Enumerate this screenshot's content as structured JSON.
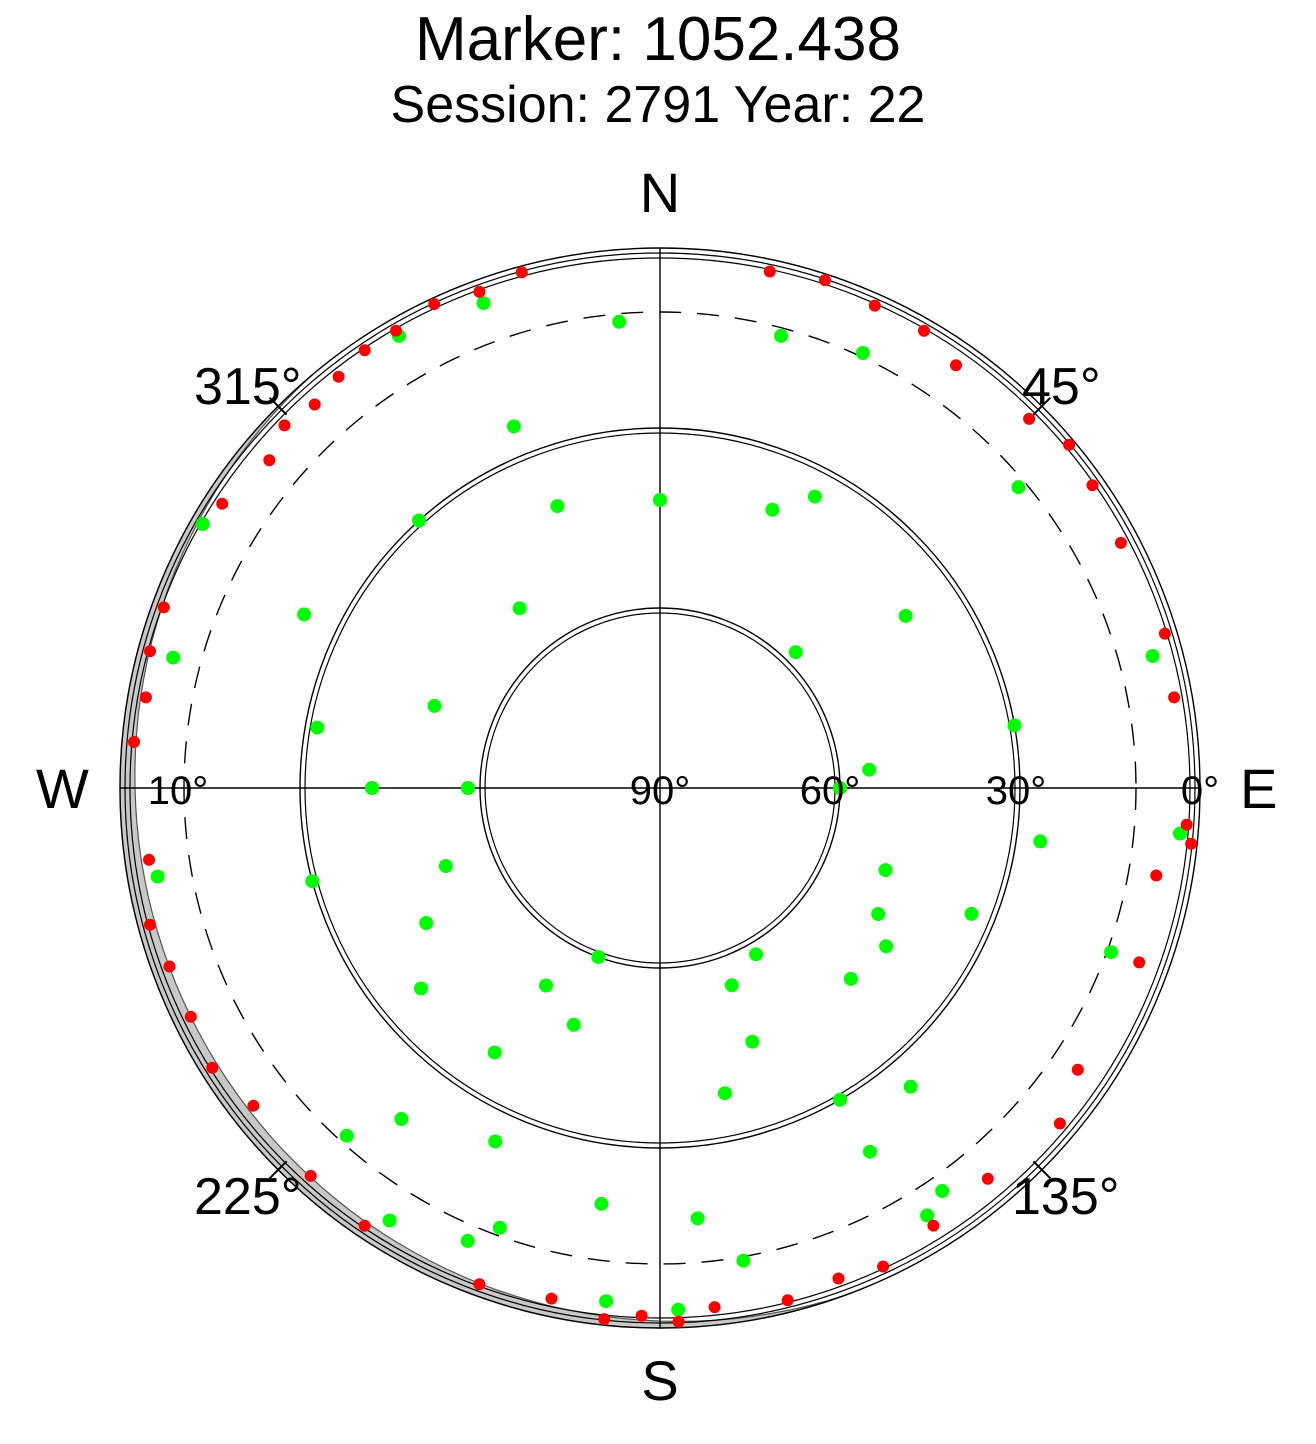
{
  "chart_data": {
    "type": "scatter",
    "subtype": "polar-skyplot",
    "title": "Marker: 1052.438",
    "subtitle": "Session: 2791 Year: 22",
    "directions": {
      "north": "N",
      "south": "S",
      "east": "E",
      "west": "W"
    },
    "azimuth_labels": [
      {
        "azimuth_deg": 45,
        "text": "45°"
      },
      {
        "azimuth_deg": 135,
        "text": "135°"
      },
      {
        "azimuth_deg": 225,
        "text": "225°"
      },
      {
        "azimuth_deg": 315,
        "text": "315°"
      }
    ],
    "elevation_labels": [
      {
        "elevation_deg": 90,
        "text": "90°"
      },
      {
        "elevation_deg": 60,
        "text": "60°"
      },
      {
        "elevation_deg": 30,
        "text": "30°"
      },
      {
        "elevation_deg": 0,
        "text": "0°"
      },
      {
        "elevation_deg": 10,
        "text": "10°",
        "side": "west"
      }
    ],
    "elevation_circles_deg": [
      0,
      30,
      60
    ],
    "cutoff_elevation_deg": 10,
    "horizon_mask": {
      "azimuth_range_deg": [
        160,
        320
      ],
      "max_elevation_deg": 3,
      "color": "#c8c8c8"
    },
    "colors": {
      "tracked": "#00ff00",
      "low_elevation": "#ff0000",
      "grid": "#000000",
      "mask": "#c8c8c8"
    },
    "series": [
      {
        "name": "",
        "color": "#00ff00",
        "points": [
          {
            "az": 340,
            "el": 4
          },
          {
            "az": 338,
            "el": 25
          },
          {
            "az": 322,
            "el": 52
          },
          {
            "az": 270,
            "el": 58
          },
          {
            "az": 212,
            "el": 38
          },
          {
            "az": 200,
            "el": 12
          },
          {
            "az": 330,
            "el": 3
          },
          {
            "az": 318,
            "el": 30
          },
          {
            "az": 290,
            "el": 50
          },
          {
            "az": 240,
            "el": 45
          },
          {
            "az": 218,
            "el": 20
          },
          {
            "az": 212,
            "el": 5
          },
          {
            "az": 25,
            "el": 10
          },
          {
            "az": 28,
            "el": 35
          },
          {
            "az": 45,
            "el": 58
          },
          {
            "az": 90,
            "el": 60
          },
          {
            "az": 135,
            "el": 45
          },
          {
            "az": 150,
            "el": 20
          },
          {
            "az": 50,
            "el": 12
          },
          {
            "az": 55,
            "el": 40
          },
          {
            "az": 85,
            "el": 55
          },
          {
            "az": 120,
            "el": 48
          },
          {
            "az": 140,
            "el": 25
          },
          {
            "az": 145,
            "el": 8
          },
          {
            "az": 75,
            "el": 5
          },
          {
            "az": 80,
            "el": 30
          },
          {
            "az": 110,
            "el": 50
          },
          {
            "az": 160,
            "el": 45
          },
          {
            "az": 175,
            "el": 18
          },
          {
            "az": 178,
            "el": 3
          },
          {
            "az": 285,
            "el": 6
          },
          {
            "az": 280,
            "el": 32
          },
          {
            "az": 250,
            "el": 52
          },
          {
            "az": 200,
            "el": 48
          },
          {
            "az": 188,
            "el": 20
          },
          {
            "az": 186,
            "el": 4
          },
          {
            "az": 300,
            "el": 2
          },
          {
            "az": 296,
            "el": 24
          },
          {
            "az": 270,
            "el": 42
          },
          {
            "az": 230,
            "el": 38
          },
          {
            "az": 222,
            "el": 12
          },
          {
            "az": 95,
            "el": 3
          },
          {
            "az": 98,
            "el": 26
          },
          {
            "az": 125,
            "el": 44
          },
          {
            "az": 168,
            "el": 38
          },
          {
            "az": 170,
            "el": 10
          },
          {
            "az": 260,
            "el": 5
          },
          {
            "az": 255,
            "el": 30
          },
          {
            "az": 200,
            "el": 60
          },
          {
            "az": 160,
            "el": 55
          },
          {
            "az": 150,
            "el": 30
          },
          {
            "az": 148,
            "el": 6
          },
          {
            "az": 110,
            "el": 10
          },
          {
            "az": 112,
            "el": 34
          },
          {
            "az": 150,
            "el": 58
          },
          {
            "az": 210,
            "el": 52
          },
          {
            "az": 205,
            "el": 25
          },
          {
            "az": 203,
            "el": 8
          },
          {
            "az": 355,
            "el": 12
          },
          {
            "az": 340,
            "el": 40
          },
          {
            "az": 0,
            "el": 42
          },
          {
            "az": 22,
            "el": 40
          },
          {
            "az": 15,
            "el": 12
          }
        ]
      },
      {
        "name": "",
        "color": "#ff0000",
        "points": [
          {
            "az": 322,
            "el": 3
          },
          {
            "az": 326,
            "el": 2
          },
          {
            "az": 330,
            "el": 2
          },
          {
            "az": 335,
            "el": 1
          },
          {
            "az": 340,
            "el": 2
          },
          {
            "az": 345,
            "el": 1
          },
          {
            "az": 318,
            "el": 4
          },
          {
            "az": 314,
            "el": 3
          },
          {
            "az": 310,
            "el": 5
          },
          {
            "az": 303,
            "el": 3
          },
          {
            "az": 290,
            "el": 2
          },
          {
            "az": 285,
            "el": 2
          },
          {
            "az": 280,
            "el": 3
          },
          {
            "az": 275,
            "el": 2
          },
          {
            "az": 262,
            "el": 4
          },
          {
            "az": 255,
            "el": 2
          },
          {
            "az": 250,
            "el": 3
          },
          {
            "az": 244,
            "el": 3
          },
          {
            "az": 238,
            "el": 2
          },
          {
            "az": 232,
            "el": 4
          },
          {
            "az": 222,
            "el": 3
          },
          {
            "az": 214,
            "el": 2
          },
          {
            "az": 200,
            "el": 2
          },
          {
            "az": 192,
            "el": 3
          },
          {
            "az": 186,
            "el": 1
          },
          {
            "az": 182,
            "el": 2
          },
          {
            "az": 178,
            "el": 1
          },
          {
            "az": 174,
            "el": 3
          },
          {
            "az": 166,
            "el": 2
          },
          {
            "az": 160,
            "el": 3
          },
          {
            "az": 155,
            "el": 2
          },
          {
            "az": 148,
            "el": 4
          },
          {
            "az": 140,
            "el": 5
          },
          {
            "az": 130,
            "el": 3
          },
          {
            "az": 124,
            "el": 6
          },
          {
            "az": 110,
            "el": 5
          },
          {
            "az": 100,
            "el": 6
          },
          {
            "az": 96,
            "el": 1
          },
          {
            "az": 94,
            "el": 2
          },
          {
            "az": 80,
            "el": 3
          },
          {
            "az": 73,
            "el": 2
          },
          {
            "az": 62,
            "el": 3
          },
          {
            "az": 55,
            "el": 2
          },
          {
            "az": 50,
            "el": 1
          },
          {
            "az": 45,
            "el": 3
          },
          {
            "az": 35,
            "el": 4
          },
          {
            "az": 30,
            "el": 2
          },
          {
            "az": 24,
            "el": 2
          },
          {
            "az": 18,
            "el": 1
          },
          {
            "az": 12,
            "el": 2
          }
        ]
      }
    ]
  }
}
